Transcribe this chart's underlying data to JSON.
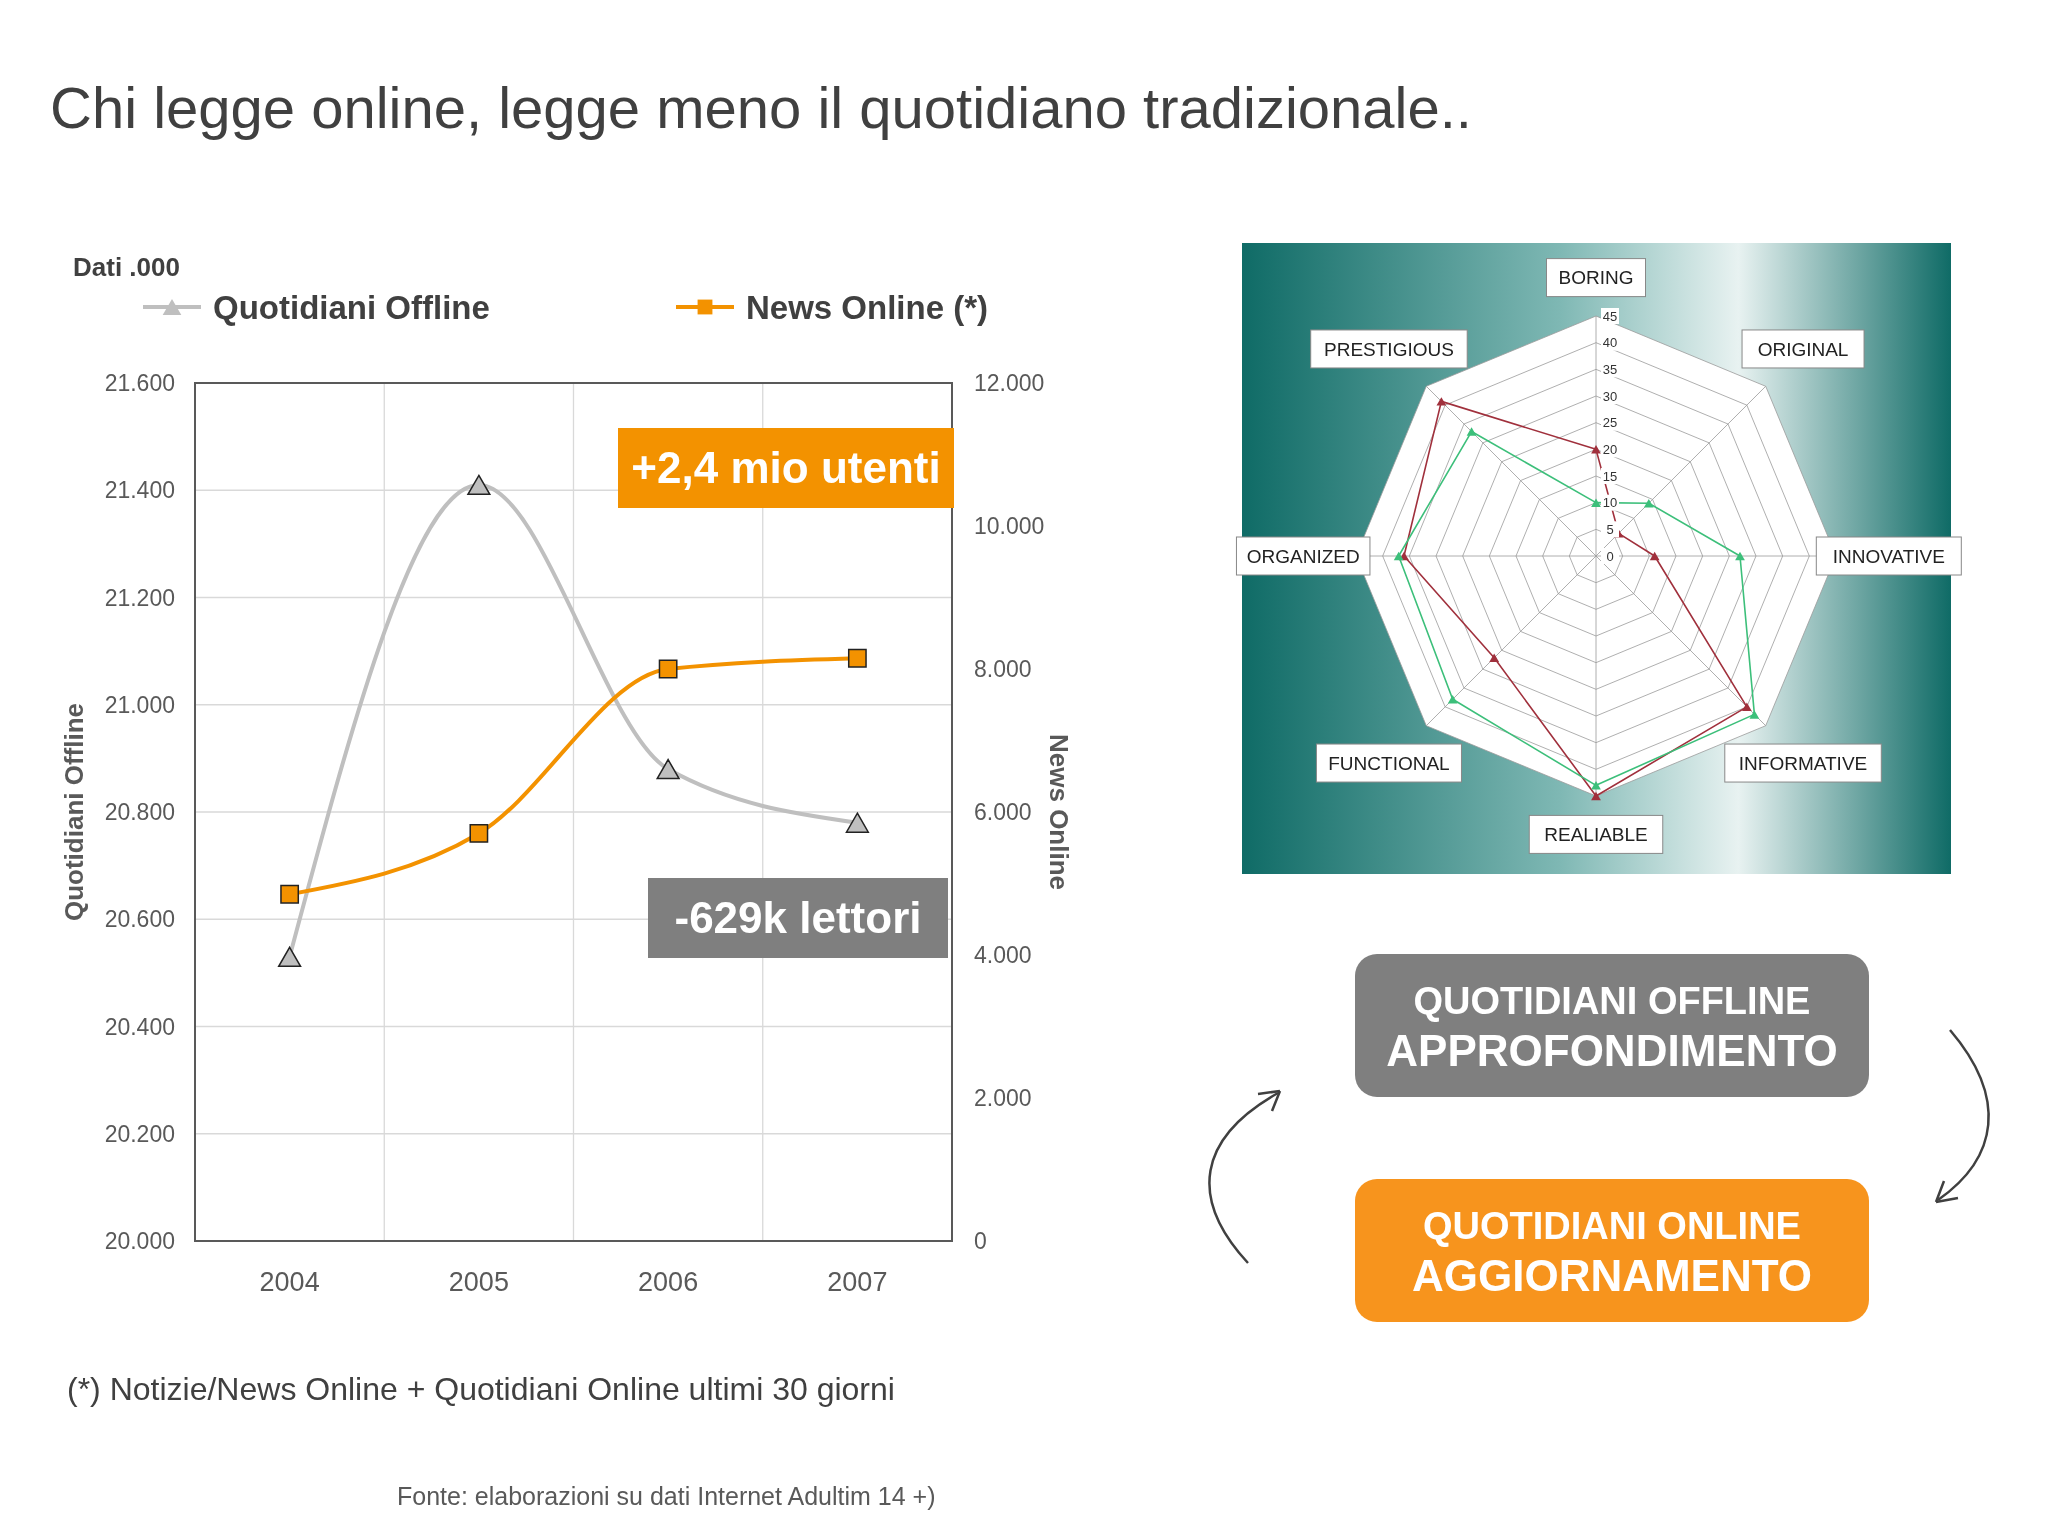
{
  "chart_data": [
    {
      "type": "line",
      "title": "Chi legge online, legge meno il quotidiano tradizionale..",
      "categories": [
        "2004",
        "2005",
        "2006",
        "2007"
      ],
      "series": [
        {
          "name": "Quotidiani Offline",
          "color": "#bfbfbf",
          "values": [
            20530,
            21410,
            20880,
            20780
          ],
          "marker": "triangle"
        },
        {
          "name": "News Online (*)",
          "color": "#f39200",
          "values": [
            4850,
            5700,
            8000,
            8150
          ],
          "axis": "y2",
          "marker": "square"
        }
      ],
      "ylabel": "Quotidiani Offline",
      "y2label": "News Online",
      "ylim": [
        20000,
        21600
      ],
      "yticks": [
        {
          "value": 20000,
          "label": "20.000"
        },
        {
          "value": 20200,
          "label": "20.200"
        },
        {
          "value": 20400,
          "label": "20.400"
        },
        {
          "value": 20600,
          "label": "20.600"
        },
        {
          "value": 20800,
          "label": "20.800"
        },
        {
          "value": 21000,
          "label": "21.000"
        },
        {
          "value": 21200,
          "label": "21.200"
        },
        {
          "value": 21400,
          "label": "21.400"
        },
        {
          "value": 21600,
          "label": "21.600"
        }
      ],
      "y2lim": [
        0,
        12000
      ],
      "y2ticks": [
        0,
        {
          "value": 2000,
          "label": "2.000"
        },
        {
          "value": 4000,
          "label": "4.000"
        },
        {
          "value": 6000,
          "label": "6.000"
        },
        {
          "value": 8000,
          "label": "8.000"
        },
        {
          "value": 10000,
          "label": "10.000"
        },
        {
          "value": 12000,
          "label": "12.000"
        }
      ],
      "grid": true,
      "legend": "top",
      "annotations": [
        "Dati .000",
        "+2,4 mio utenti",
        "-629k lettori",
        "(*) Notizie/News Online + Quotidiani Online ultimi 30 giorni",
        "Fonte: elaborazioni su dati Internet Adultim 14 +)"
      ]
    },
    {
      "type": "radar",
      "categories": [
        "BORING",
        "ORIGINAL",
        "INNOVATIVE",
        "INFORMATIVE",
        "REALIABLE",
        "FUNCTIONAL",
        "ORGANIZED",
        "PRESTIGIOUS"
      ],
      "series": [
        {
          "color": "#a0303c",
          "values": [
            20,
            6,
            11,
            40,
            45,
            27,
            36,
            41
          ]
        },
        {
          "color": "#3cbf7a",
          "values": [
            10,
            14,
            27,
            42,
            43,
            38,
            37,
            33
          ]
        }
      ],
      "ylim": [
        0,
        45
      ],
      "yticks": [
        0,
        5,
        10,
        15,
        20,
        25,
        30,
        35,
        40,
        45
      ],
      "grid": true,
      "marker": "triangle"
    },
    {
      "type": "other",
      "annotations": [
        "QUOTIDIANI OFFLINE\nAPPROFONDIMENTO",
        "QUOTIDIANI ONLINE\nAGGIORNAMENTO"
      ]
    }
  ]
}
